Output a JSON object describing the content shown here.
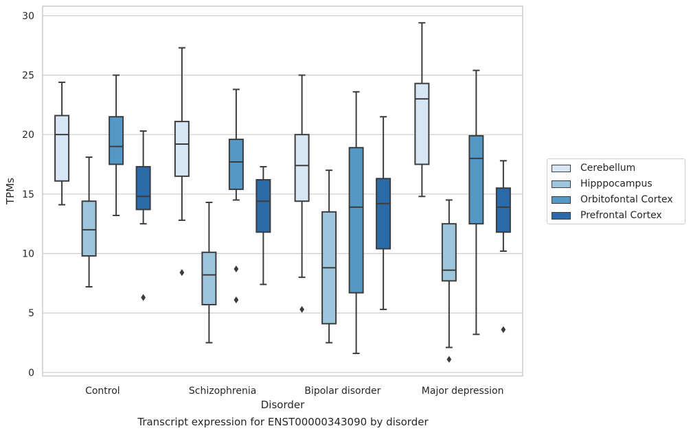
{
  "caption": "Transcript expression for ENST00000343090 by disorder",
  "chart_data": {
    "type": "box",
    "xlabel": "Disorder",
    "ylabel": "TPMs",
    "ylim": [
      -0.3,
      30.8
    ],
    "yticks": [
      0,
      5,
      10,
      15,
      20,
      25,
      30
    ],
    "categories": [
      "Control",
      "Schizophrenia",
      "Bipolar disorder",
      "Major depression"
    ],
    "grid": true,
    "legend_position": "right",
    "series": [
      {
        "name": "Cerebellum",
        "color": "#d7e6f4",
        "boxes": [
          {
            "whisker_low": 14.1,
            "q1": 16.1,
            "median": 20.0,
            "q3": 21.6,
            "whisker_high": 24.4,
            "outliers": []
          },
          {
            "whisker_low": 12.8,
            "q1": 16.5,
            "median": 19.2,
            "q3": 21.1,
            "whisker_high": 27.3,
            "outliers": [
              8.4
            ]
          },
          {
            "whisker_low": 8.0,
            "q1": 14.4,
            "median": 17.4,
            "q3": 20.0,
            "whisker_high": 25.0,
            "outliers": [
              5.3
            ]
          },
          {
            "whisker_low": 14.8,
            "q1": 17.5,
            "median": 23.0,
            "q3": 24.3,
            "whisker_high": 29.4,
            "outliers": []
          }
        ]
      },
      {
        "name": "Hipppocampus",
        "color": "#9dc6dd",
        "boxes": [
          {
            "whisker_low": 7.2,
            "q1": 9.8,
            "median": 12.0,
            "q3": 14.4,
            "whisker_high": 18.1,
            "outliers": []
          },
          {
            "whisker_low": 2.5,
            "q1": 5.7,
            "median": 8.2,
            "q3": 10.1,
            "whisker_high": 14.3,
            "outliers": []
          },
          {
            "whisker_low": 2.5,
            "q1": 4.1,
            "median": 8.8,
            "q3": 13.5,
            "whisker_high": 17.0,
            "outliers": []
          },
          {
            "whisker_low": 2.1,
            "q1": 7.7,
            "median": 8.6,
            "q3": 12.5,
            "whisker_high": 14.5,
            "outliers": [
              1.1
            ]
          }
        ]
      },
      {
        "name": "Orbitofontal Cortex",
        "color": "#5498c6",
        "boxes": [
          {
            "whisker_low": 13.2,
            "q1": 17.5,
            "median": 19.0,
            "q3": 21.5,
            "whisker_high": 25.0,
            "outliers": []
          },
          {
            "whisker_low": 14.5,
            "q1": 15.4,
            "median": 17.7,
            "q3": 19.6,
            "whisker_high": 23.8,
            "outliers": [
              8.7,
              6.1
            ]
          },
          {
            "whisker_low": 1.6,
            "q1": 6.7,
            "median": 13.9,
            "q3": 18.9,
            "whisker_high": 23.6,
            "outliers": []
          },
          {
            "whisker_low": 3.2,
            "q1": 12.5,
            "median": 18.0,
            "q3": 19.9,
            "whisker_high": 25.4,
            "outliers": []
          }
        ]
      },
      {
        "name": "Prefrontal Cortex",
        "color": "#2b6aa8",
        "boxes": [
          {
            "whisker_low": 12.5,
            "q1": 13.7,
            "median": 14.8,
            "q3": 17.3,
            "whisker_high": 20.3,
            "outliers": [
              6.3
            ]
          },
          {
            "whisker_low": 7.4,
            "q1": 11.8,
            "median": 14.4,
            "q3": 16.2,
            "whisker_high": 17.3,
            "outliers": []
          },
          {
            "whisker_low": 5.3,
            "q1": 10.4,
            "median": 14.2,
            "q3": 16.3,
            "whisker_high": 21.5,
            "outliers": []
          },
          {
            "whisker_low": 10.2,
            "q1": 11.8,
            "median": 13.9,
            "q3": 15.5,
            "whisker_high": 17.8,
            "outliers": [
              3.6
            ]
          }
        ]
      }
    ]
  }
}
